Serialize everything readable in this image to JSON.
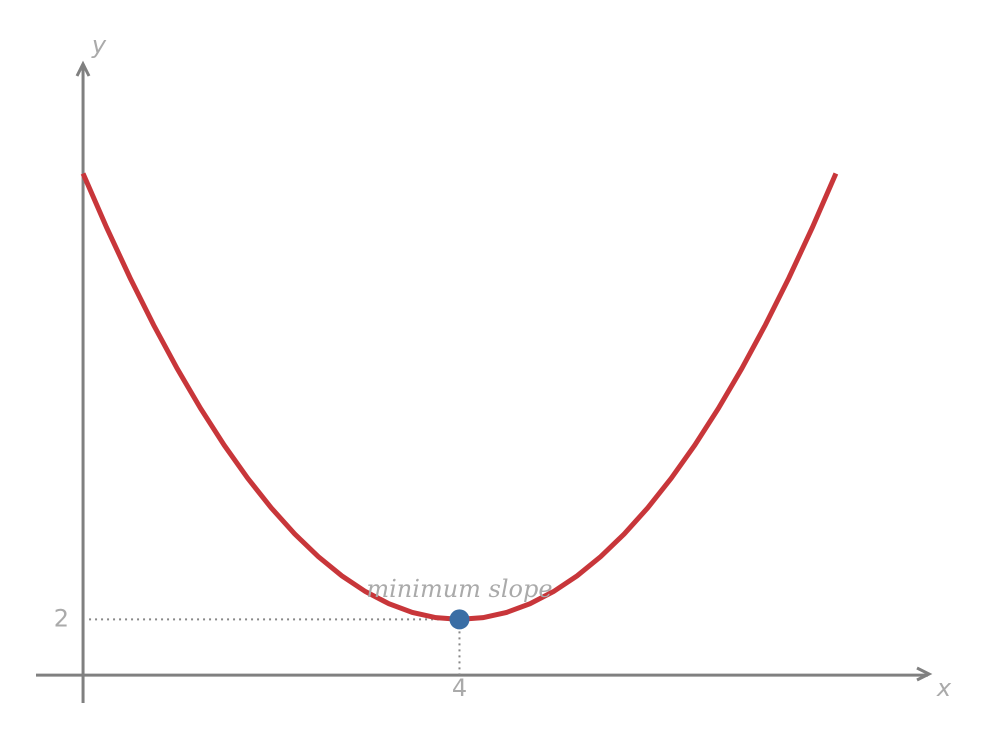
{
  "chart_data": {
    "type": "line",
    "x_label": "x",
    "y_label": "y",
    "x": [
      0,
      0.25,
      0.5,
      0.75,
      1,
      1.25,
      1.5,
      1.75,
      2,
      2.25,
      2.5,
      2.75,
      3,
      3.25,
      3.5,
      3.75,
      4,
      4.25,
      4.5,
      4.75,
      5,
      5.25,
      5.5,
      5.75,
      6,
      6.25,
      6.5,
      6.75,
      7,
      7.25,
      7.5,
      7.75,
      8
    ],
    "series": [
      {
        "color": "#c8363a",
        "values": [
          18,
          16.0625,
          14.25,
          12.5625,
          11,
          9.5625,
          8.25,
          7.0625,
          6,
          5.0625,
          4.25,
          3.5625,
          3,
          2.5625,
          2.25,
          2.0625,
          2,
          2.0625,
          2.25,
          2.5625,
          3,
          3.5625,
          4.25,
          5.0625,
          6,
          7.0625,
          8.25,
          9.5625,
          11,
          12.5625,
          14.25,
          16.0625,
          18
        ]
      }
    ],
    "point": {
      "x": 4,
      "y": 2,
      "color": "#3a6ea5",
      "label": "minimum slope"
    },
    "xlim": [
      -0.5,
      9
    ],
    "ylim": [
      -1,
      22
    ],
    "xticks": [
      4
    ],
    "yticks": [
      2
    ]
  }
}
